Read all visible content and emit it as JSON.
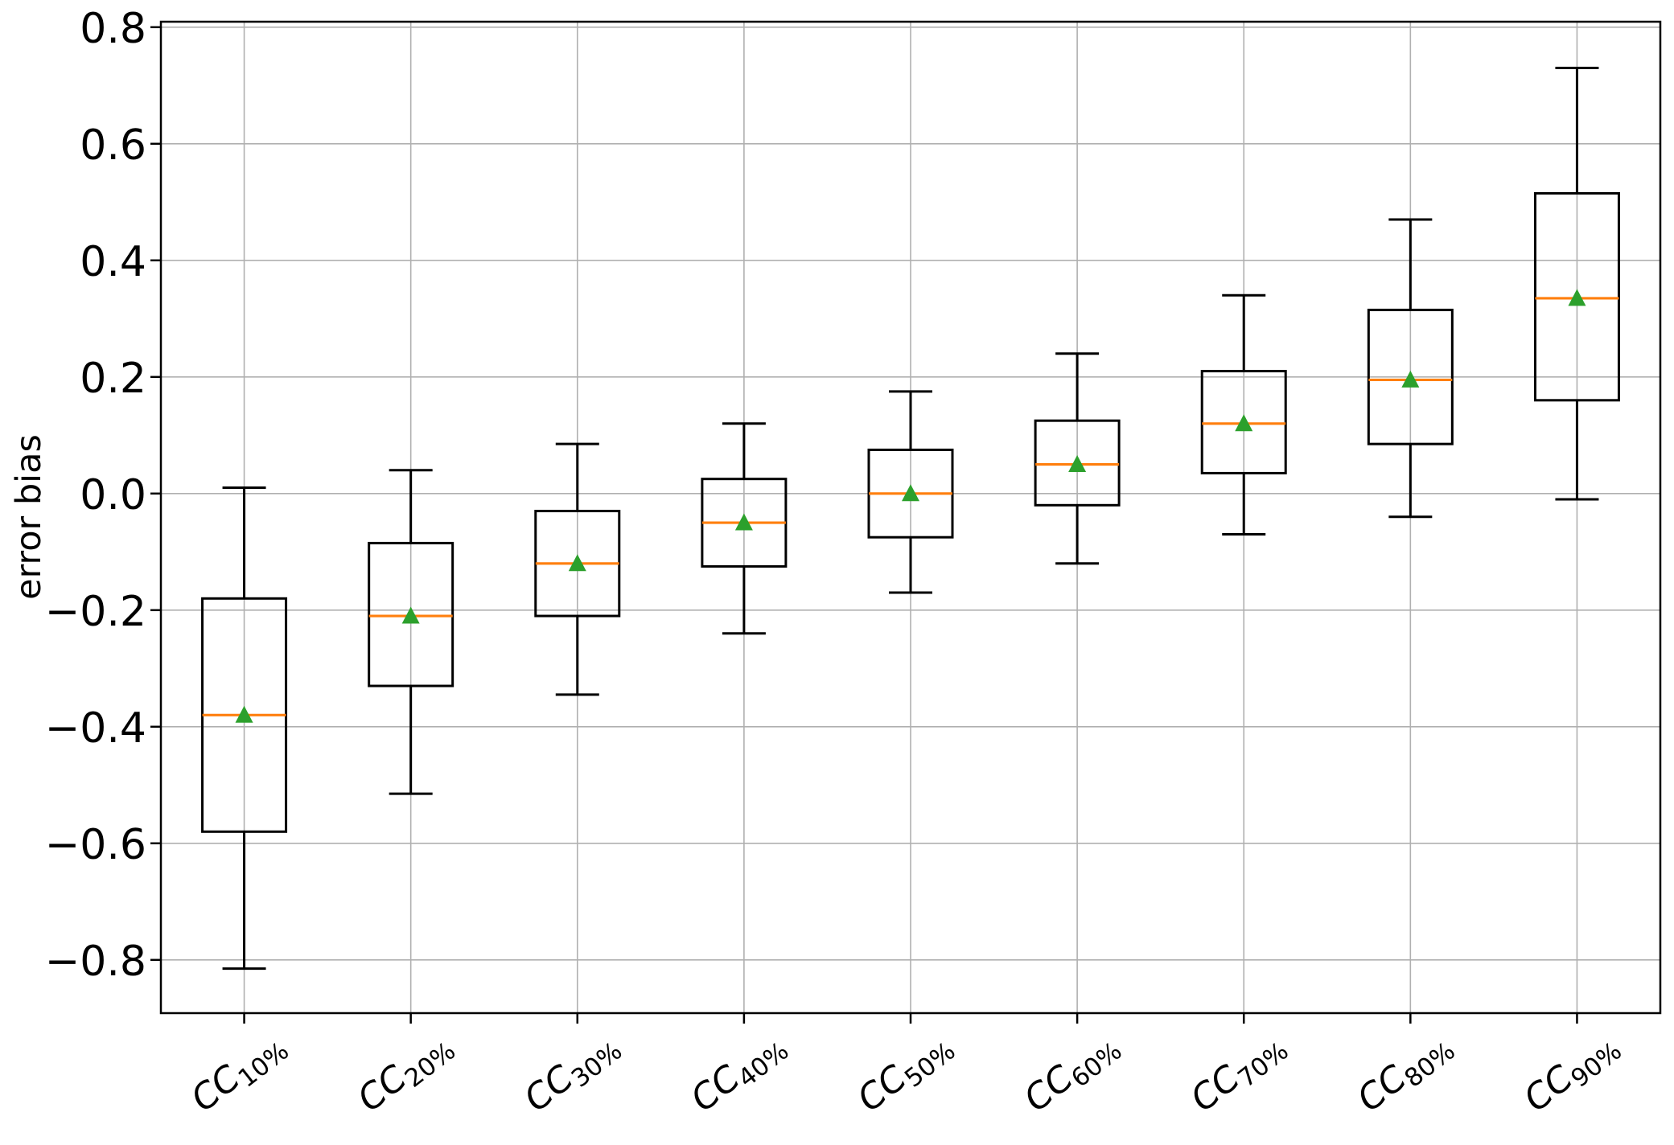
{
  "chart_data": {
    "type": "box",
    "title": "",
    "xlabel": "",
    "ylabel": "error bias",
    "ylim": [
      -0.89,
      0.81
    ],
    "grid": true,
    "legend_position": "none",
    "yticks": [
      {
        "value": 0.8,
        "label": "0.8"
      },
      {
        "value": 0.6,
        "label": "0.6"
      },
      {
        "value": 0.4,
        "label": "0.4"
      },
      {
        "value": 0.2,
        "label": "0.2"
      },
      {
        "value": 0.0,
        "label": "0.0"
      },
      {
        "value": -0.2,
        "label": "−0.2"
      },
      {
        "value": -0.4,
        "label": "−0.4"
      },
      {
        "value": -0.6,
        "label": "−0.6"
      },
      {
        "value": -0.8,
        "label": "−0.8"
      }
    ],
    "categories": [
      {
        "base": "CC",
        "sub": "10%"
      },
      {
        "base": "CC",
        "sub": "20%"
      },
      {
        "base": "CC",
        "sub": "30%"
      },
      {
        "base": "CC",
        "sub": "40%"
      },
      {
        "base": "CC",
        "sub": "50%"
      },
      {
        "base": "CC",
        "sub": "60%"
      },
      {
        "base": "CC",
        "sub": "70%"
      },
      {
        "base": "CC",
        "sub": "80%"
      },
      {
        "base": "CC",
        "sub": "90%"
      }
    ],
    "series": [
      {
        "label": "CC10%",
        "whislo": -0.815,
        "q1": -0.58,
        "med": -0.38,
        "q3": -0.18,
        "whishi": 0.01,
        "mean": -0.38
      },
      {
        "label": "CC20%",
        "whislo": -0.515,
        "q1": -0.33,
        "med": -0.21,
        "q3": -0.085,
        "whishi": 0.04,
        "mean": -0.21
      },
      {
        "label": "CC30%",
        "whislo": -0.345,
        "q1": -0.21,
        "med": -0.12,
        "q3": -0.03,
        "whishi": 0.085,
        "mean": -0.12
      },
      {
        "label": "CC40%",
        "whislo": -0.24,
        "q1": -0.125,
        "med": -0.05,
        "q3": 0.025,
        "whishi": 0.12,
        "mean": -0.05
      },
      {
        "label": "CC50%",
        "whislo": -0.17,
        "q1": -0.075,
        "med": 0.0,
        "q3": 0.075,
        "whishi": 0.175,
        "mean": 0.0
      },
      {
        "label": "CC60%",
        "whislo": -0.12,
        "q1": -0.02,
        "med": 0.05,
        "q3": 0.125,
        "whishi": 0.24,
        "mean": 0.05
      },
      {
        "label": "CC70%",
        "whislo": -0.07,
        "q1": 0.035,
        "med": 0.12,
        "q3": 0.21,
        "whishi": 0.34,
        "mean": 0.12
      },
      {
        "label": "CC80%",
        "whislo": -0.04,
        "q1": 0.085,
        "med": 0.195,
        "q3": 0.315,
        "whishi": 0.47,
        "mean": 0.195
      },
      {
        "label": "CC90%",
        "whislo": -0.01,
        "q1": 0.16,
        "med": 0.335,
        "q3": 0.515,
        "whishi": 0.73,
        "mean": 0.335
      }
    ],
    "colors": {
      "box": "#000000",
      "whisker": "#000000",
      "median": "#ff7f0e",
      "mean_marker": "#2ca02c",
      "grid": "#b0b0b0",
      "axis": "#000000",
      "background": "#ffffff"
    }
  }
}
